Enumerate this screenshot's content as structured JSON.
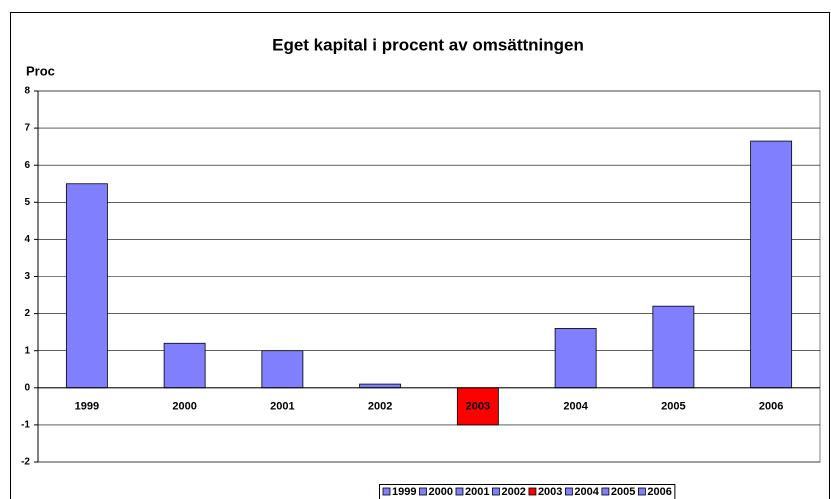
{
  "chart_data": {
    "type": "bar",
    "title": "Eget kapital i procent av omsättningen",
    "y_label": "Proc",
    "categories": [
      "1999",
      "2000",
      "2001",
      "2002",
      "2003",
      "2004",
      "2005",
      "2006"
    ],
    "values": [
      5.5,
      1.2,
      1.0,
      0.1,
      -1.0,
      1.6,
      2.2,
      6.65
    ],
    "colors": [
      "#8080ff",
      "#8080ff",
      "#8080ff",
      "#8080ff",
      "#ff0000",
      "#8080ff",
      "#8080ff",
      "#8080ff"
    ],
    "ylim": [
      -2,
      8
    ],
    "yticks": [
      -2,
      -1,
      0,
      1,
      2,
      3,
      4,
      5,
      6,
      7,
      8
    ],
    "grid": true,
    "legend": "bottom"
  }
}
